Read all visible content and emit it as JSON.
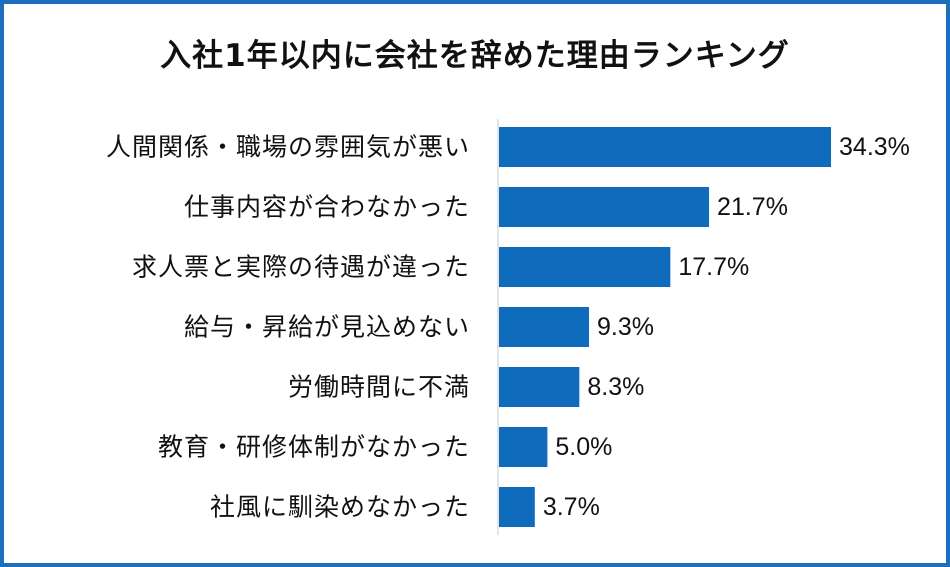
{
  "colors": {
    "border": "#1b6fbd",
    "bar": "#0f6cbd",
    "axis": "#c8c8c8",
    "text": "#111111"
  },
  "chart_data": {
    "type": "bar",
    "orientation": "horizontal",
    "title": "入社1年以内に会社を辞めた理由ランキング",
    "categories": [
      "人間関係・職場の雰囲気が悪い",
      "仕事内容が合わなかった",
      "求人票と実際の待遇が違った",
      "給与・昇給が見込めない",
      "労働時間に不満",
      "教育・研修体制がなかった",
      "社風に馴染めなかった"
    ],
    "values": [
      34.3,
      21.7,
      17.7,
      9.3,
      8.3,
      5.0,
      3.7
    ],
    "value_labels": [
      "34.3%",
      "21.7%",
      "17.7%",
      "9.3%",
      "8.3%",
      "5.0%",
      "3.7%"
    ],
    "unit": "%",
    "grid": false,
    "legend": "none"
  }
}
